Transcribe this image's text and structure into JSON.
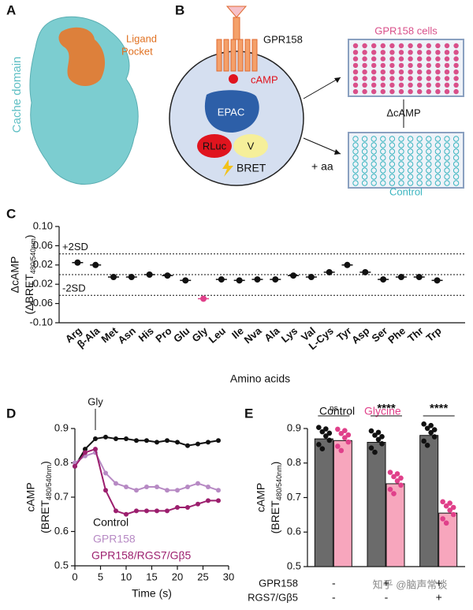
{
  "panels": {
    "a": {
      "letter": "A",
      "domain_label": "Cache domain",
      "pocket_label": [
        "Ligand",
        "Pocket"
      ]
    },
    "b": {
      "letter": "B",
      "receptor": "GPR158",
      "camp": "cAMP",
      "epac": "EPAC",
      "rluc": "RLuc",
      "v": "V",
      "bret": "BRET",
      "aa": "+ aa",
      "plate_top": "GPR158 cells",
      "delta": "ΔcAMP",
      "plate_bottom": "Control"
    }
  },
  "chart_data": [
    {
      "type": "dot",
      "letter": "C",
      "y_label": {
        "name": "ΔcAMP",
        "unit": "(ΔBRET",
        "unit_sub": "480/540nm",
        "unit_end": ")"
      },
      "x_label": "Amino acids",
      "categories": [
        "Arg",
        "β-Ala",
        "Met",
        "Asn",
        "His",
        "Pro",
        "Glu",
        "Gly",
        "Leu",
        "Ile",
        "Nva",
        "Ala",
        "Lys",
        "Val",
        "L-Cys",
        "Tyr",
        "Asp",
        "Ser",
        "Phe",
        "Thr",
        "Trp"
      ],
      "values": [
        0.025,
        0.02,
        -0.005,
        -0.005,
        0.0,
        -0.002,
        -0.012,
        -0.05,
        -0.01,
        -0.012,
        -0.01,
        -0.01,
        -0.002,
        -0.005,
        0.005,
        0.02,
        0.005,
        -0.01,
        -0.005,
        -0.005,
        -0.012
      ],
      "color": "#111111",
      "highlight": {
        "index": 7,
        "color": "#e0408a"
      },
      "ylim": [
        -0.1,
        0.1
      ],
      "yticks": [
        {
          "value": -0.1,
          "label": "-0.10"
        },
        -0.06,
        -0.02,
        0.02,
        0.06,
        {
          "value": 0.1,
          "label": "0.10"
        }
      ],
      "ref_lines": [
        {
          "value": 0.043,
          "label": "+2SD"
        },
        {
          "value": 0.0
        },
        {
          "value": -0.043,
          "label": "-2SD"
        }
      ]
    },
    {
      "type": "line",
      "letter": "D",
      "y_label": {
        "name": "cAMP",
        "unit": "(BRET",
        "unit_sub": "480/540nm",
        "unit_end": ")"
      },
      "x_label": "Time (s)",
      "annotation": {
        "text": "Gly",
        "x": 4
      },
      "x": [
        0,
        2,
        4,
        6,
        8,
        10,
        12,
        14,
        16,
        18,
        20,
        22,
        24,
        26,
        28
      ],
      "series": [
        {
          "name": "Control",
          "color": "#111111",
          "values": [
            0.79,
            0.84,
            0.87,
            0.875,
            0.87,
            0.87,
            0.865,
            0.865,
            0.86,
            0.865,
            0.86,
            0.85,
            0.855,
            0.86,
            0.865
          ]
        },
        {
          "name": "GPR158",
          "color": "#b78ac4",
          "values": [
            0.8,
            0.82,
            0.83,
            0.77,
            0.74,
            0.73,
            0.72,
            0.73,
            0.73,
            0.72,
            0.72,
            0.73,
            0.74,
            0.73,
            0.72
          ]
        },
        {
          "name": "GPR158/RGS7/Gβ5",
          "color": "#9c1f6e",
          "values": [
            0.79,
            0.83,
            0.84,
            0.72,
            0.66,
            0.65,
            0.66,
            0.66,
            0.66,
            0.66,
            0.67,
            0.67,
            0.68,
            0.69,
            0.69
          ]
        }
      ],
      "xlim": [
        0,
        30
      ],
      "xticks": [
        0,
        5,
        10,
        15,
        20,
        25,
        30
      ],
      "ylim": [
        0.5,
        0.9
      ],
      "yticks": [
        0.5,
        0.6,
        0.7,
        0.8,
        0.9
      ]
    },
    {
      "type": "bar",
      "letter": "E",
      "y_label": {
        "name": "cAMP",
        "unit": "(BRET",
        "unit_sub": "480/540nm",
        "unit_end": ")"
      },
      "series": [
        {
          "name": "Control",
          "color": "#6b6b6b",
          "values": [
            0.87,
            0.86,
            0.88
          ]
        },
        {
          "name": "Glycine",
          "color": "#f7a6bd",
          "values": [
            0.865,
            0.74,
            0.655
          ]
        }
      ],
      "significance": [
        "ns",
        "****",
        "****"
      ],
      "conditions": [
        {
          "name": "GPR158",
          "marks": [
            "-",
            "+",
            "+"
          ]
        },
        {
          "name": "RGS7/Gβ5",
          "marks": [
            "-",
            "-",
            "+"
          ]
        }
      ],
      "ylim": [
        0.5,
        0.9
      ],
      "yticks": [
        0.5,
        0.6,
        0.7,
        0.8,
        0.9
      ]
    }
  ],
  "watermark": "知乎 @脑声常谈"
}
